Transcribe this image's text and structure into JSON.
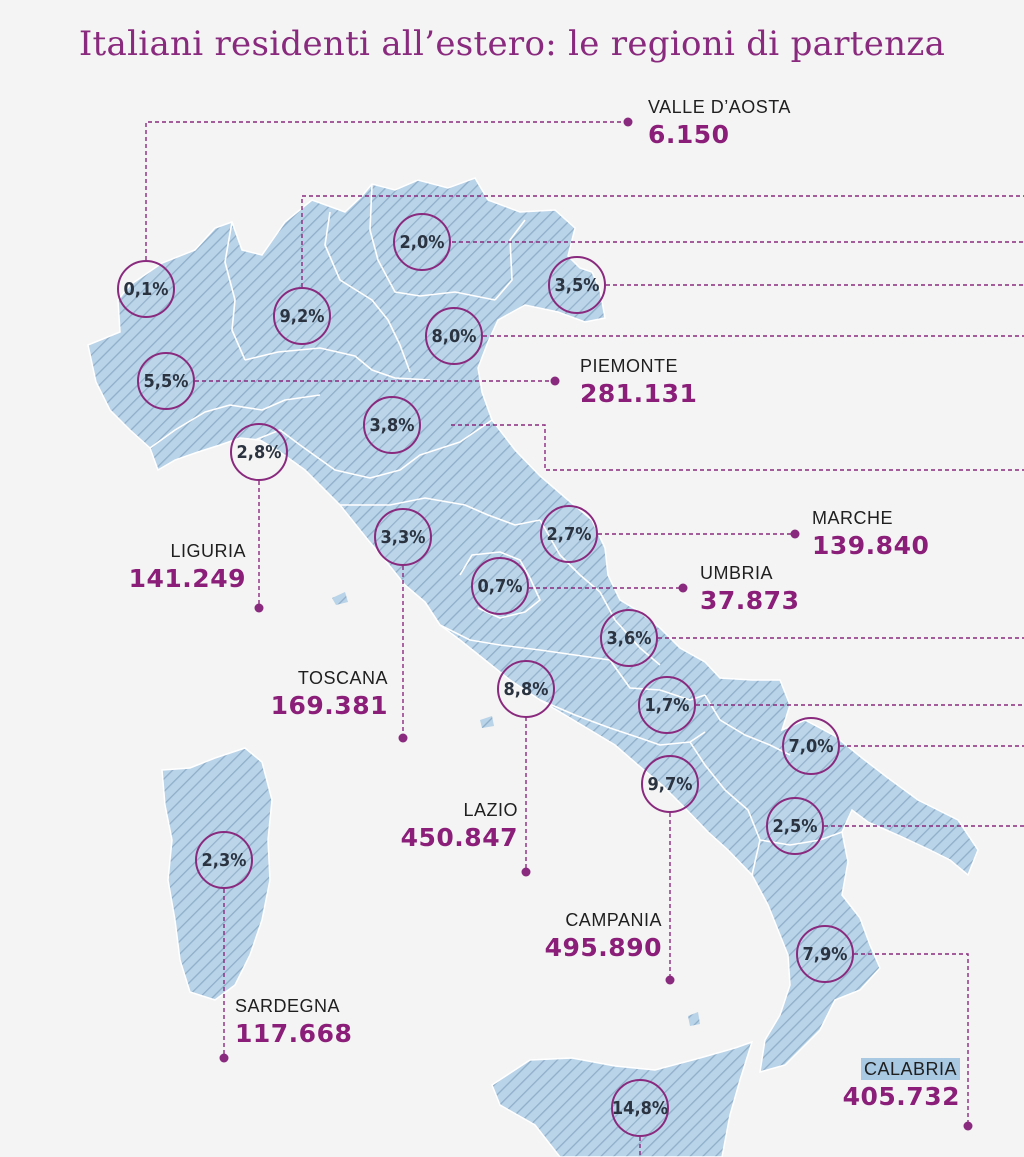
{
  "title": "Italiani residenti all’estero: le regioni di partenza",
  "colors": {
    "accent": "#8a2a7e",
    "land": "#b9d3e8",
    "stripe": "#8fafca",
    "border": "#ffffff"
  },
  "regions": {
    "valle_daosta": {
      "name": "VALLE D’AOSTA",
      "value": "6.150",
      "pct": "0,1%"
    },
    "piemonte": {
      "name": "PIEMONTE",
      "value": "281.131",
      "pct": "5,5%"
    },
    "liguria": {
      "name": "LIGURIA",
      "value": "141.249",
      "pct": "2,8%"
    },
    "toscana": {
      "name": "TOSCANA",
      "value": "169.381",
      "pct": "3,3%"
    },
    "marche": {
      "name": "MARCHE",
      "value": "139.840",
      "pct": "2,7%"
    },
    "umbria": {
      "name": "UMBRIA",
      "value": "37.873",
      "pct": "0,7%"
    },
    "lazio": {
      "name": "LAZIO",
      "value": "450.847",
      "pct": "8,8%"
    },
    "campania": {
      "name": "CAMPANIA",
      "value": "495.890",
      "pct": "9,7%"
    },
    "sardegna": {
      "name": "SARDEGNA",
      "value": "117.668",
      "pct": "2,3%"
    },
    "calabria": {
      "name": "CALABRIA",
      "value": "405.732",
      "pct": "7,9%"
    },
    "lombardia": {
      "pct": "9,2%"
    },
    "trentino": {
      "pct": "2,0%"
    },
    "friuli": {
      "pct": "3,5%"
    },
    "veneto": {
      "pct": "8,0%"
    },
    "emilia": {
      "pct": "3,8%"
    },
    "abruzzo": {
      "pct": "3,6%"
    },
    "molise": {
      "pct": "1,7%"
    },
    "puglia": {
      "pct": "7,0%"
    },
    "basilicata": {
      "pct": "2,5%"
    },
    "sicilia": {
      "pct": "14,8%"
    }
  }
}
